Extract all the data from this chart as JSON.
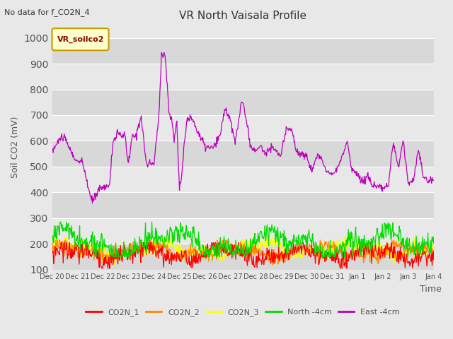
{
  "title": "VR North Vaisala Profile",
  "subtitle": "No data for f_CO2N_4",
  "ylabel": "Soil CO2 (mV)",
  "xlabel": "Time",
  "legend_label": "VR_soilco2",
  "ylim": [
    100,
    1050
  ],
  "yticks": [
    100,
    200,
    300,
    400,
    500,
    600,
    700,
    800,
    900,
    1000
  ],
  "x_labels": [
    "Dec 20",
    "Dec 21",
    "Dec 22",
    "Dec 23",
    "Dec 24",
    "Dec 25",
    "Dec 26",
    "Dec 27",
    "Dec 28",
    "Dec 29",
    "Dec 30",
    "Dec 31",
    "Jan 1",
    "Jan 2",
    "Jan 3",
    "Jan 4"
  ],
  "colors": {
    "CO2N_1": "#ff0000",
    "CO2N_2": "#ff8800",
    "CO2N_3": "#ffff00",
    "North_4cm": "#00dd00",
    "East_4cm": "#bb00bb"
  },
  "bg_color": "#e8e8e8",
  "band_color_dark": "#d8d8d8",
  "band_color_light": "#e8e8e8",
  "legend_entries": [
    "CO2N_1",
    "CO2N_2",
    "CO2N_3",
    "North -4cm",
    "East -4cm"
  ]
}
